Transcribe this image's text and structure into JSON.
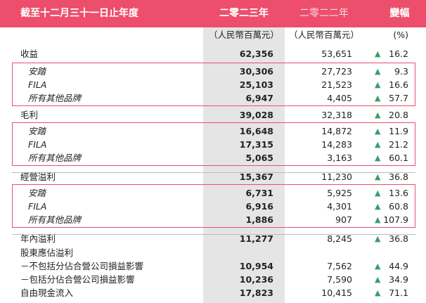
{
  "header": {
    "period_label": "截至十二月三十一日止年度",
    "col_2023": "二零二三年",
    "col_2022": "二零二二年",
    "col_change": "變幅"
  },
  "units": {
    "col_2023": "（人民幣百萬元）",
    "col_2022": "（人民幣百萬元）",
    "col_change": "(%)"
  },
  "colors": {
    "accent": "#ec4e6c",
    "up_arrow": "#3a9c6e",
    "current_col_bg": "#e5e5e5"
  },
  "rows": [
    {
      "label": "收益",
      "y2023": "62,356",
      "y2022": "53,651",
      "arrow": "▲",
      "change": "16.2"
    },
    {
      "label": "安踏",
      "y2023": "30,306",
      "y2022": "27,723",
      "arrow": "▲",
      "change": "9.3"
    },
    {
      "label": "FILA",
      "y2023": "25,103",
      "y2022": "21,523",
      "arrow": "▲",
      "change": "16.6"
    },
    {
      "label": "所有其他品牌",
      "y2023": "6,947",
      "y2022": "4,405",
      "arrow": "▲",
      "change": "57.7"
    },
    {
      "label": "毛利",
      "y2023": "39,028",
      "y2022": "32,318",
      "arrow": "▲",
      "change": "20.8"
    },
    {
      "label": "安踏",
      "y2023": "16,648",
      "y2022": "14,872",
      "arrow": "▲",
      "change": "11.9"
    },
    {
      "label": "FILA",
      "y2023": "17,315",
      "y2022": "14,283",
      "arrow": "▲",
      "change": "21.2"
    },
    {
      "label": "所有其他品牌",
      "y2023": "5,065",
      "y2022": "3,163",
      "arrow": "▲",
      "change": "60.1"
    },
    {
      "label": "經營溢利",
      "y2023": "15,367",
      "y2022": "11,230",
      "arrow": "▲",
      "change": "36.8"
    },
    {
      "label": "安踏",
      "y2023": "6,731",
      "y2022": "5,925",
      "arrow": "▲",
      "change": "13.6"
    },
    {
      "label": "FILA",
      "y2023": "6,916",
      "y2022": "4,301",
      "arrow": "▲",
      "change": "60.8"
    },
    {
      "label": "所有其他品牌",
      "y2023": "1,886",
      "y2022": "907",
      "arrow": "▲",
      "change": "107.9"
    },
    {
      "label": "年內溢利",
      "y2023": "11,277",
      "y2022": "8,245",
      "arrow": "▲",
      "change": "36.8"
    },
    {
      "label": "股東應佔溢利",
      "y2023": "",
      "y2022": "",
      "arrow": "",
      "change": ""
    },
    {
      "label": "－不包括分佔合營公司損益影響",
      "y2023": "10,954",
      "y2022": "7,562",
      "arrow": "▲",
      "change": "44.9"
    },
    {
      "label": "－包括分佔合營公司損益影響",
      "y2023": "10,236",
      "y2022": "7,590",
      "arrow": "▲",
      "change": "34.9"
    },
    {
      "label": "自由現金流入",
      "y2023": "17,823",
      "y2022": "10,415",
      "arrow": "▲",
      "change": "71.1"
    }
  ]
}
